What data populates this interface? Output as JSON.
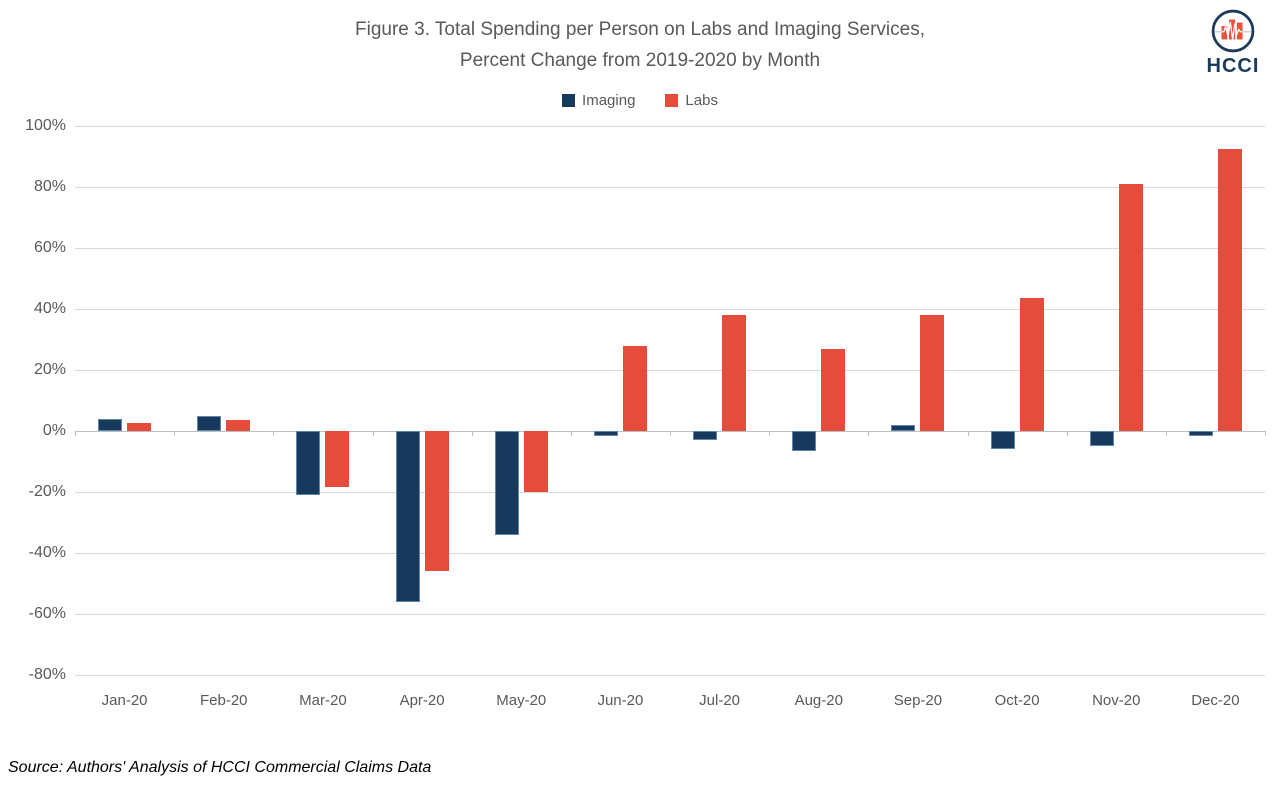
{
  "header": {
    "title_line1": "Figure 3. Total Spending per Person on Labs and Imaging Services,",
    "title_line2": "Percent Change from 2019-2020 by Month"
  },
  "logo": {
    "text": "HCCI"
  },
  "source": "Source: Authors' Analysis of HCCI Commercial Claims Data",
  "colors": {
    "imaging": "#17395B",
    "labs": "#E64C3B",
    "title_text": "#595959",
    "gridline": "#D9D9D9",
    "zero_axis": "#BFBFBF",
    "logo_navy": "#1C3A5C",
    "logo_red": "#F0503C"
  },
  "chart_data": {
    "type": "bar",
    "title": "Figure 3. Total Spending per Person on Labs and Imaging Services, Percent Change from 2019-2020 by Month",
    "categories": [
      "Jan-20",
      "Feb-20",
      "Mar-20",
      "Apr-20",
      "May-20",
      "Jun-20",
      "Jul-20",
      "Aug-20",
      "Sep-20",
      "Oct-20",
      "Nov-20",
      "Dec-20"
    ],
    "series": [
      {
        "name": "Imaging",
        "color": "#17395B",
        "values": [
          4,
          5,
          -21,
          -56,
          -34,
          -1.5,
          -3,
          -6.5,
          2,
          -6,
          -5,
          -1.5
        ]
      },
      {
        "name": "Labs",
        "color": "#E64C3B",
        "values": [
          2.5,
          3.5,
          -18.5,
          -46,
          -20,
          28,
          38,
          27,
          38,
          43.5,
          81,
          92.5
        ]
      }
    ],
    "ylabel": "",
    "xlabel": "",
    "ylim": [
      -80,
      100
    ],
    "ytick_labels": [
      "100%",
      "80%",
      "60%",
      "40%",
      "20%",
      "0%",
      "-20%",
      "-40%",
      "-60%",
      "-80%"
    ],
    "grid": true,
    "legend_position": "top"
  }
}
